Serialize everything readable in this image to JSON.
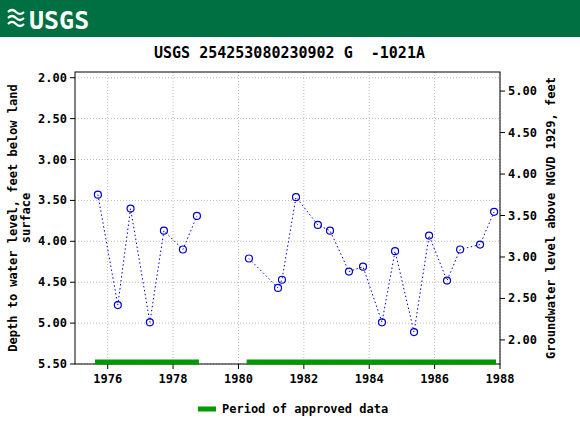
{
  "header": {
    "logo": "USGS"
  },
  "chart_data": {
    "type": "line",
    "title": "USGS 254253080230902 G  -1021A",
    "ylabel": [
      "Depth to water level, feet below land",
      "surface"
    ],
    "y2label": "Groundwater level above NGVD 1929, feet",
    "x": [
      1975.7,
      1976.31,
      1976.7,
      1977.29,
      1977.72,
      1978.3,
      1978.73,
      null,
      1980.32,
      1981.21,
      1981.33,
      1981.76,
      1982.43,
      1982.8,
      1983.38,
      1983.81,
      1984.39,
      1984.79,
      1985.37,
      1985.83,
      1986.38,
      1986.78,
      1987.39,
      1987.82
    ],
    "series": [
      {
        "name": "Depth to water level",
        "color": "#0000cc",
        "marker": "circle",
        "line_style": "dotted",
        "values": [
          3.43,
          4.78,
          3.6,
          4.99,
          3.87,
          4.1,
          3.69,
          null,
          4.21,
          4.57,
          4.47,
          3.46,
          3.8,
          3.87,
          4.37,
          4.31,
          4.99,
          4.12,
          5.11,
          3.93,
          4.48,
          4.1,
          4.04,
          3.64
        ]
      }
    ],
    "xlim": [
      1975,
      1988
    ],
    "xticks": [
      1976,
      1978,
      1980,
      1982,
      1984,
      1986,
      1988
    ],
    "ylim": [
      1.93,
      5.5
    ],
    "yticks": [
      {
        "value": 2,
        "label": "2.00"
      },
      {
        "value": 2.5,
        "label": "2.50"
      },
      {
        "value": 3,
        "label": "3.00"
      },
      {
        "value": 3.5,
        "label": "3.50"
      },
      {
        "value": 4,
        "label": "4.00"
      },
      {
        "value": 4.5,
        "label": "4.50"
      },
      {
        "value": 5,
        "label": "5.00"
      },
      {
        "value": 5.5,
        "label": "5.50"
      }
    ],
    "y2lim": [
      5.23,
      1.71
    ],
    "y2ticks": [
      {
        "value": 2,
        "label": "2.00"
      },
      {
        "value": 2.5,
        "label": "2.50"
      },
      {
        "value": 3,
        "label": "3.00"
      },
      {
        "value": 3.5,
        "label": "3.50"
      },
      {
        "value": 4,
        "label": "4.00"
      },
      {
        "value": 4.5,
        "label": "4.50"
      },
      {
        "value": 5,
        "label": "5.00"
      }
    ],
    "grid": true,
    "approved_periods": [
      [
        1975.61,
        1978.79
      ],
      [
        1980.25,
        1987.88
      ]
    ],
    "approved_color": "#009900",
    "legend_label": "Period of approved data",
    "legend": "bottom"
  }
}
